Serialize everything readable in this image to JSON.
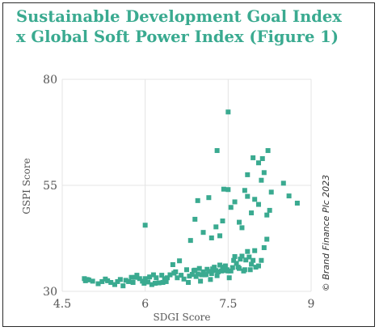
{
  "chart_data": {
    "type": "scatter",
    "title_lines": [
      "Sustainable Development Goal Index",
      "x Global Soft Power Index (Figure 1)"
    ],
    "xlabel": "SDGI Score",
    "ylabel": "GSPI Score",
    "xlim": [
      4.5,
      9
    ],
    "ylim": [
      30,
      80
    ],
    "x_ticks": [
      4.5,
      6,
      7.5,
      9
    ],
    "y_ticks": [
      30,
      55,
      80
    ],
    "grid": true,
    "color": "#3aaa90",
    "credit": "© Brand Finance Plc 2023",
    "points": [
      [
        4.9,
        33.0
      ],
      [
        4.92,
        32.5
      ],
      [
        4.95,
        32.8
      ],
      [
        4.98,
        32.7
      ],
      [
        5.05,
        32.4
      ],
      [
        5.15,
        31.8
      ],
      [
        5.22,
        32.3
      ],
      [
        5.28,
        32.9
      ],
      [
        5.32,
        32.5
      ],
      [
        5.38,
        32.1
      ],
      [
        5.45,
        31.6
      ],
      [
        5.5,
        32.3
      ],
      [
        5.55,
        32.8
      ],
      [
        5.6,
        31.3
      ],
      [
        5.65,
        32.6
      ],
      [
        5.7,
        32.3
      ],
      [
        5.75,
        33.3
      ],
      [
        5.78,
        32.1
      ],
      [
        5.82,
        33.3
      ],
      [
        5.85,
        33.8
      ],
      [
        5.9,
        33.0
      ],
      [
        5.95,
        32.4
      ],
      [
        5.98,
        31.9
      ],
      [
        6.0,
        33.0
      ],
      [
        6.05,
        32.2
      ],
      [
        6.08,
        33.4
      ],
      [
        6.12,
        31.6
      ],
      [
        6.15,
        33.9
      ],
      [
        6.18,
        31.9
      ],
      [
        6.2,
        33.2
      ],
      [
        6.25,
        32.0
      ],
      [
        6.3,
        33.8
      ],
      [
        6.32,
        32.1
      ],
      [
        6.35,
        33.0
      ],
      [
        6.38,
        32.3
      ],
      [
        6.4,
        33.2
      ],
      [
        6.45,
        33.9
      ],
      [
        6.5,
        36.3
      ],
      [
        6.52,
        34.3
      ],
      [
        6.55,
        34.6
      ],
      [
        6.58,
        33.2
      ],
      [
        6.62,
        37.2
      ],
      [
        6.65,
        33.8
      ],
      [
        6.7,
        32.9
      ],
      [
        6.75,
        35.1
      ],
      [
        6.78,
        32.1
      ],
      [
        6.8,
        33.6
      ],
      [
        6.85,
        34.0
      ],
      [
        6.88,
        34.9
      ],
      [
        6.9,
        35.0
      ],
      [
        6.92,
        33.5
      ],
      [
        6.95,
        34.1
      ],
      [
        6.98,
        35.4
      ],
      [
        7.0,
        32.4
      ],
      [
        7.02,
        33.9
      ],
      [
        7.05,
        34.6
      ],
      [
        7.08,
        33.9
      ],
      [
        7.1,
        34.0
      ],
      [
        7.12,
        35.2
      ],
      [
        7.15,
        34.7
      ],
      [
        7.18,
        32.8
      ],
      [
        7.2,
        34.2
      ],
      [
        7.22,
        35.3
      ],
      [
        7.25,
        35.7
      ],
      [
        7.28,
        34.9
      ],
      [
        7.3,
        33.7
      ],
      [
        7.32,
        34.6
      ],
      [
        7.35,
        36.2
      ],
      [
        7.38,
        34.8
      ],
      [
        7.4,
        35.7
      ],
      [
        7.42,
        34.9
      ],
      [
        7.45,
        36.0
      ],
      [
        7.48,
        35.1
      ],
      [
        7.5,
        34.8
      ],
      [
        7.52,
        33.2
      ],
      [
        7.55,
        34.8
      ],
      [
        7.58,
        35.6
      ],
      [
        7.6,
        37.3
      ],
      [
        7.62,
        38.2
      ],
      [
        7.65,
        36.6
      ],
      [
        7.68,
        35.7
      ],
      [
        7.7,
        35.4
      ],
      [
        7.72,
        37.6
      ],
      [
        7.75,
        38.3
      ],
      [
        7.78,
        34.8
      ],
      [
        7.8,
        35.1
      ],
      [
        7.82,
        37.4
      ],
      [
        7.85,
        39.4
      ],
      [
        7.88,
        38.1
      ],
      [
        7.9,
        35.1
      ],
      [
        7.92,
        36.4
      ],
      [
        7.95,
        37.3
      ],
      [
        7.98,
        39.6
      ],
      [
        8.0,
        35.7
      ],
      [
        8.05,
        36.0
      ],
      [
        8.1,
        37.3
      ],
      [
        8.15,
        40.3
      ],
      [
        8.2,
        42.3
      ],
      [
        6.0,
        45.6
      ],
      [
        6.82,
        42.0
      ],
      [
        6.9,
        47.0
      ],
      [
        6.95,
        51.4
      ],
      [
        7.05,
        43.9
      ],
      [
        7.15,
        52.1
      ],
      [
        7.2,
        42.6
      ],
      [
        7.28,
        45.2
      ],
      [
        7.35,
        43.1
      ],
      [
        7.4,
        46.6
      ],
      [
        7.5,
        54.0
      ],
      [
        7.55,
        49.8
      ],
      [
        7.62,
        51.1
      ],
      [
        7.7,
        46.3
      ],
      [
        7.75,
        45.0
      ],
      [
        7.8,
        53.8
      ],
      [
        7.85,
        52.4
      ],
      [
        7.92,
        48.5
      ],
      [
        7.98,
        51.7
      ],
      [
        8.05,
        50.5
      ],
      [
        8.1,
        56.2
      ],
      [
        8.15,
        58.0
      ],
      [
        8.2,
        48.0
      ],
      [
        8.25,
        49.1
      ],
      [
        7.85,
        57.5
      ],
      [
        7.95,
        61.5
      ],
      [
        8.05,
        60.3
      ],
      [
        8.12,
        61.3
      ],
      [
        8.22,
        63.2
      ],
      [
        8.28,
        53.4
      ],
      [
        7.3,
        63.2
      ],
      [
        7.42,
        54.1
      ],
      [
        8.5,
        55.5
      ],
      [
        8.6,
        52.5
      ],
      [
        8.75,
        50.8
      ],
      [
        7.5,
        72.3
      ]
    ]
  }
}
